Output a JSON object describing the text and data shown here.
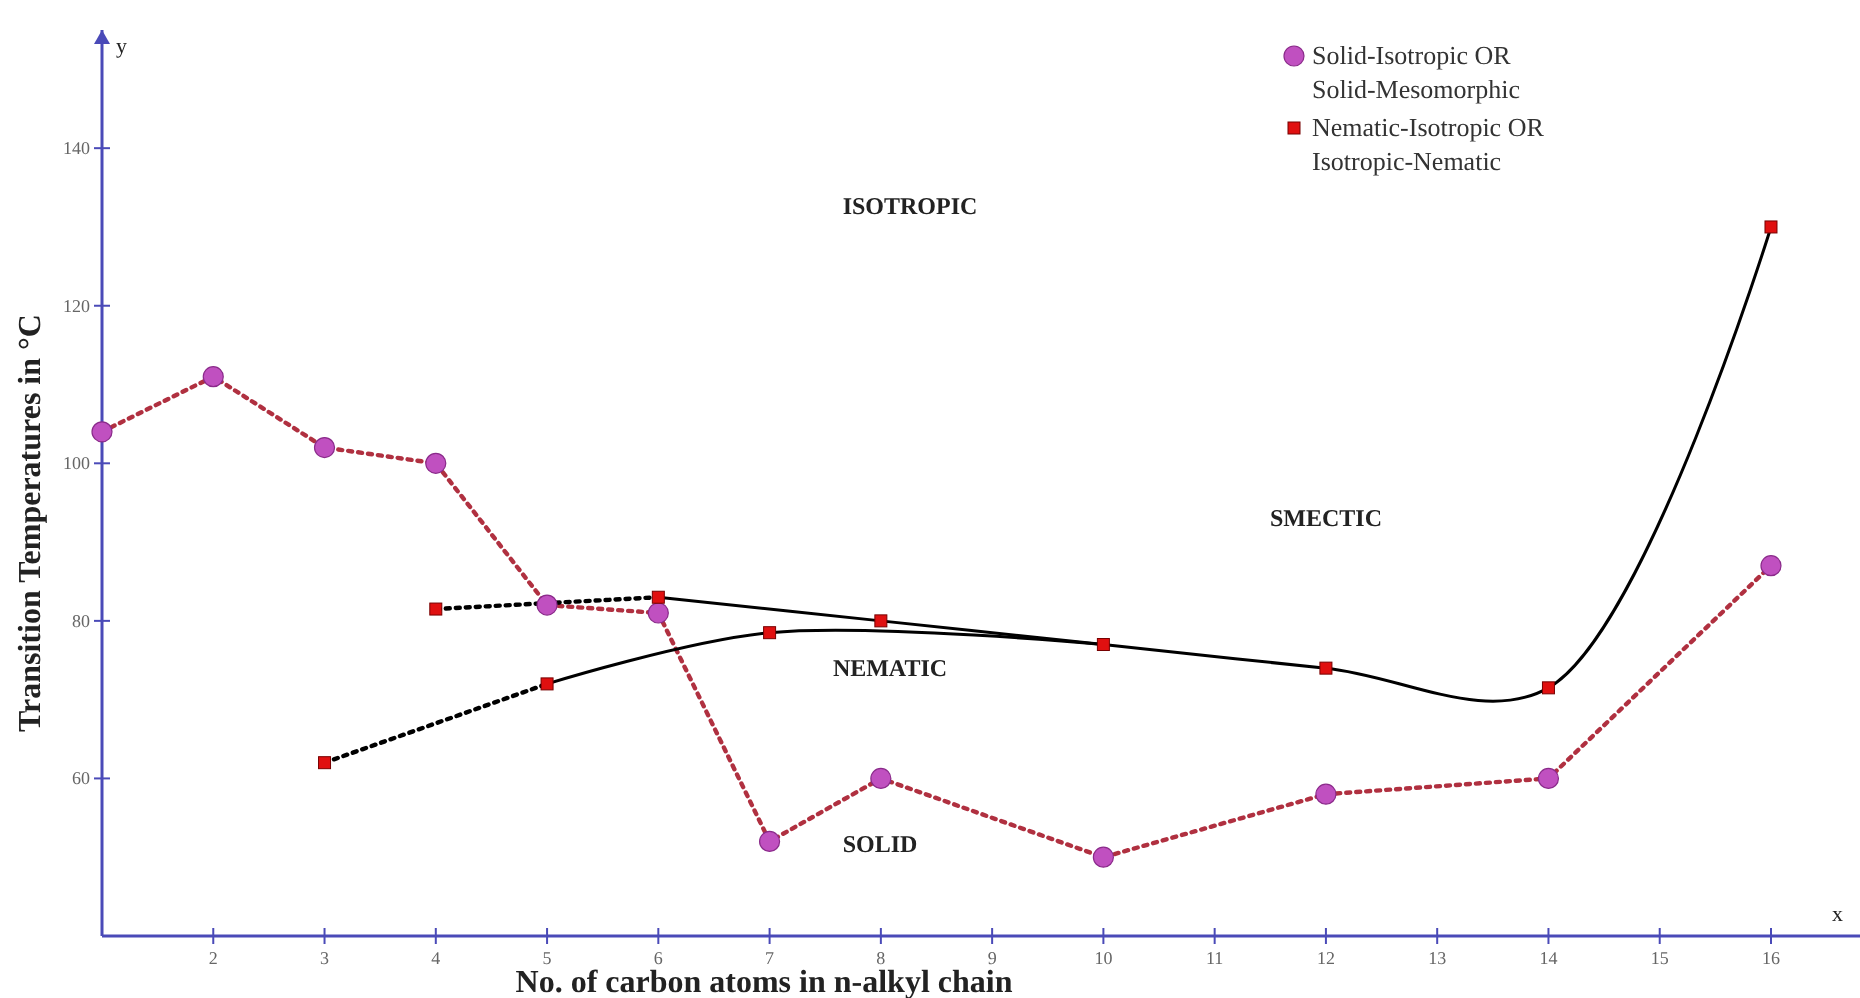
{
  "chart_data": {
    "type": "scatter",
    "xlabel": "No. of carbon atoms in n-alkyl chain",
    "ylabel": "Transition Temperatures in °C",
    "xlim": [
      1,
      16.8
    ],
    "ylim": [
      40,
      155
    ],
    "xticks": [
      2,
      3,
      4,
      5,
      6,
      7,
      8,
      9,
      10,
      11,
      12,
      13,
      14,
      15,
      16
    ],
    "yticks": [
      60,
      80,
      100,
      120,
      140
    ],
    "grid": false,
    "legend": "top right",
    "series": [
      {
        "type": "line",
        "color": "#b03040",
        "line_style": "dotted",
        "marker": "none",
        "x": [
          1,
          2,
          3,
          4,
          5,
          6,
          7,
          8,
          10,
          12,
          14,
          16
        ],
        "values": [
          104,
          111,
          102,
          100,
          82,
          81,
          52,
          60,
          50,
          58,
          60,
          87
        ]
      },
      {
        "type": "line",
        "color": "#000000",
        "line_style": "dotted",
        "marker": "none",
        "x": [
          3,
          5
        ],
        "values": [
          62,
          72
        ]
      },
      {
        "type": "line",
        "color": "#000000",
        "line_style": "dotted",
        "marker": "none",
        "x": [
          4,
          6
        ],
        "values": [
          81.5,
          83
        ]
      },
      {
        "type": "line",
        "color": "#000000",
        "line_style": "solid",
        "marker": "none",
        "x": [
          5,
          7,
          10
        ],
        "values": [
          72,
          78.5,
          77
        ]
      },
      {
        "type": "line",
        "color": "#000000",
        "line_style": "solid",
        "marker": "none",
        "x": [
          6,
          8,
          10
        ],
        "values": [
          83,
          80,
          77
        ]
      },
      {
        "type": "line",
        "color": "#000000",
        "line_style": "solid",
        "marker": "none",
        "x": [
          10,
          12,
          14,
          16
        ],
        "values": [
          77,
          74,
          71.5,
          130
        ]
      },
      {
        "name": "Solid-Isotropic OR Solid-Mesomorphic",
        "color": "#c050c0",
        "marker": "circle",
        "x": [
          1,
          2,
          3,
          4,
          5,
          6,
          7,
          8,
          10,
          12,
          14,
          16
        ],
        "values": [
          104,
          111,
          102,
          100,
          82,
          81,
          52,
          60,
          50,
          58,
          60,
          87
        ]
      },
      {
        "name": "Nematic-Isotropic OR Isotropic-Nematic",
        "color": "#e01010",
        "marker": "square",
        "x": [
          3,
          4,
          5,
          6,
          7,
          8,
          10,
          12,
          14,
          16
        ],
        "values": [
          62,
          81.5,
          72,
          83,
          78.5,
          80,
          77,
          74,
          71.5,
          130
        ]
      }
    ],
    "annotations": [
      "ISOTROPIC",
      "SMECTIC",
      "NEMATIC",
      "SOLID",
      "y",
      "x"
    ]
  }
}
